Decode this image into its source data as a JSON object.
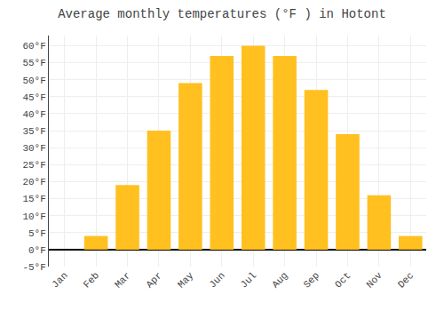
{
  "chart_data": {
    "type": "bar",
    "title": "Average monthly temperatures (°F ) in Hotont",
    "categories": [
      "Jan",
      "Feb",
      "Mar",
      "Apr",
      "May",
      "Jun",
      "Jul",
      "Aug",
      "Sep",
      "Oct",
      "Nov",
      "Dec"
    ],
    "values": [
      0,
      4,
      19,
      35,
      49,
      57,
      60,
      57,
      47,
      34,
      16,
      4
    ],
    "color": "#FFC020",
    "ylim": [
      -5,
      63
    ],
    "yticks": [
      {
        "value": -5,
        "label": "-5°F"
      },
      {
        "value": 0,
        "label": "0°F"
      },
      {
        "value": 5,
        "label": "5°F"
      },
      {
        "value": 10,
        "label": "10°F"
      },
      {
        "value": 15,
        "label": "15°F"
      },
      {
        "value": 20,
        "label": "20°F"
      },
      {
        "value": 25,
        "label": "25°F"
      },
      {
        "value": 30,
        "label": "30°F"
      },
      {
        "value": 35,
        "label": "35°F"
      },
      {
        "value": 40,
        "label": "40°F"
      },
      {
        "value": 45,
        "label": "45°F"
      },
      {
        "value": 50,
        "label": "50°F"
      },
      {
        "value": 55,
        "label": "55°F"
      },
      {
        "value": 60,
        "label": "60°F"
      }
    ],
    "grid": true
  }
}
